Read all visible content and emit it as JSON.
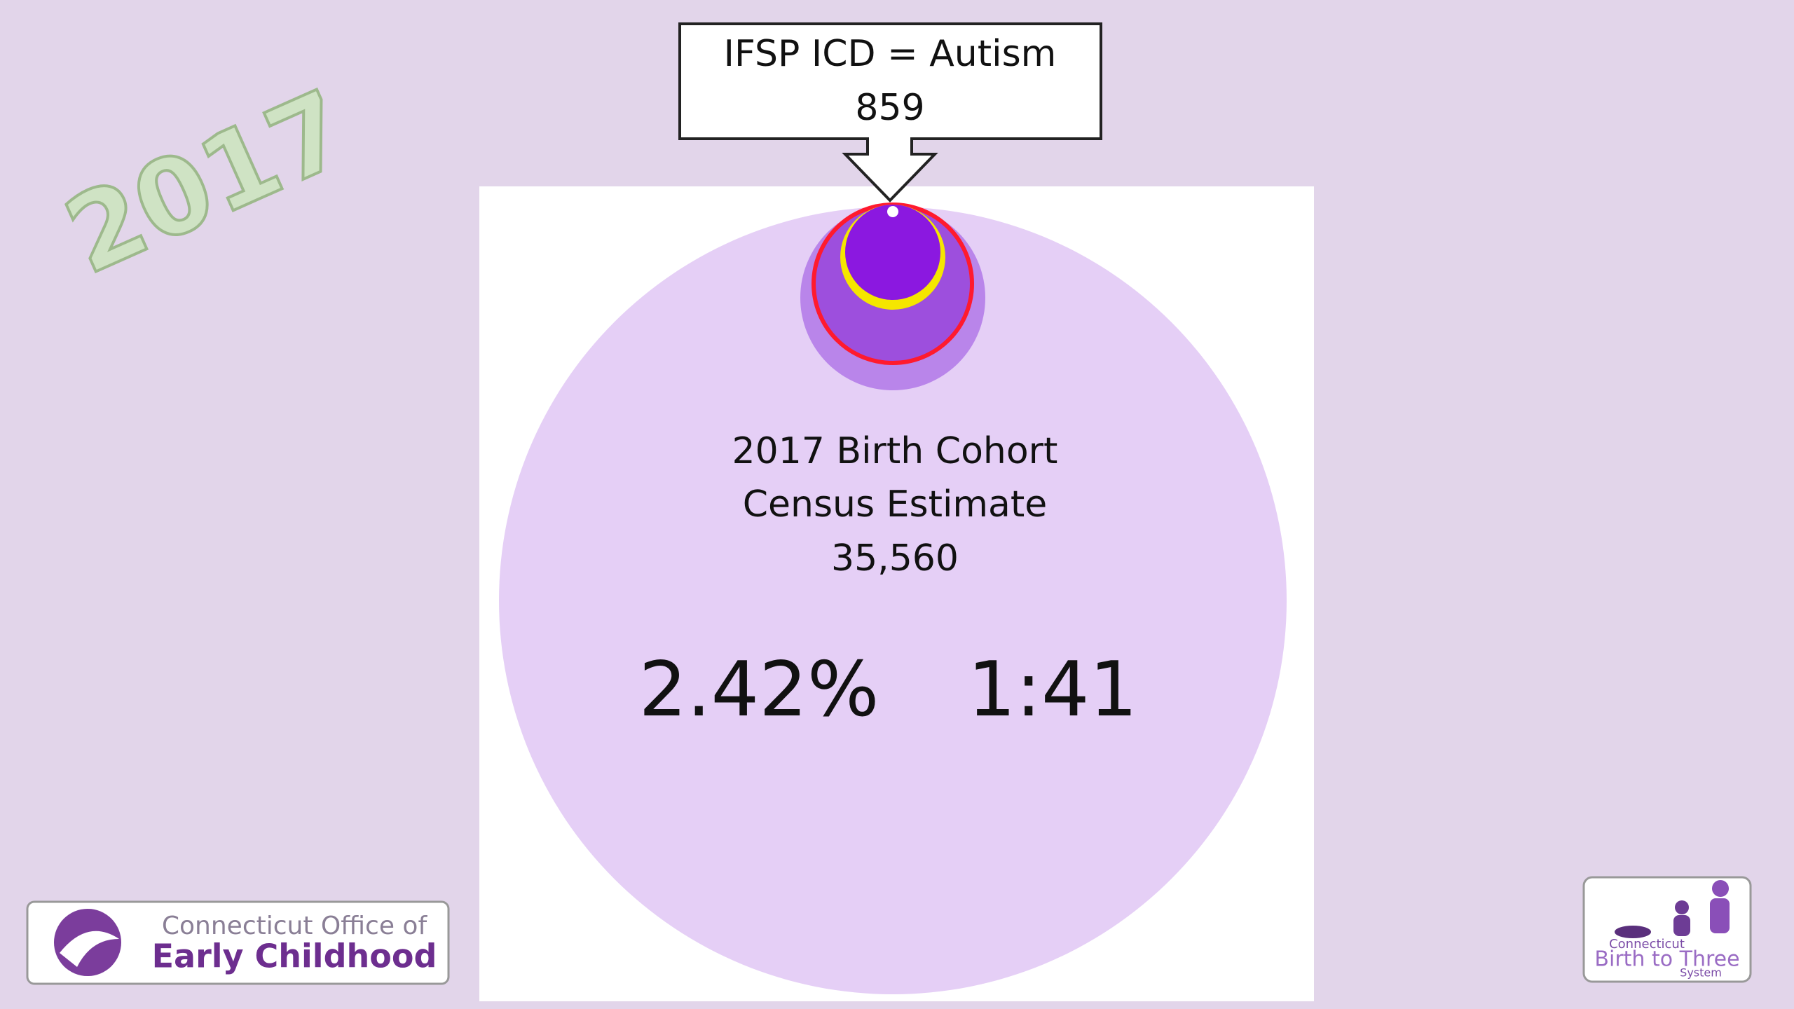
{
  "slide": {
    "year": "2017",
    "callout": {
      "title": "IFSP ICD = Autism",
      "value": "859"
    },
    "circle": {
      "lines": [
        "2017 Birth Cohort",
        "Census Estimate",
        "35,560"
      ],
      "percent": "2.42%",
      "ratio": "1:41"
    },
    "logos": {
      "left": {
        "line1": "Connecticut Office of",
        "line2": "Early Childhood"
      },
      "right": {
        "line1": "Connecticut",
        "line2": "Birth to Three",
        "line3": "System"
      }
    }
  }
}
